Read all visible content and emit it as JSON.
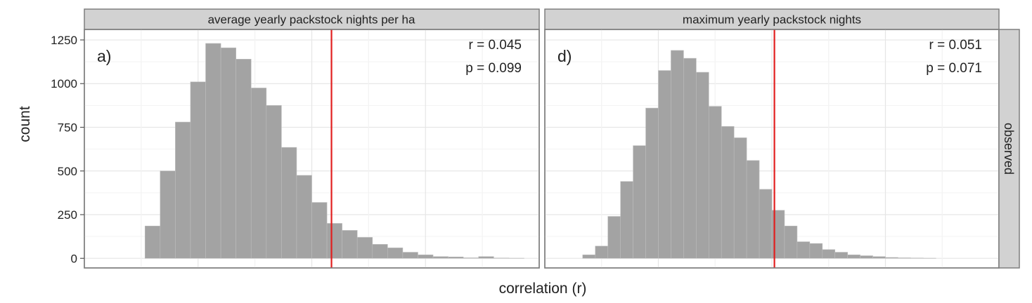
{
  "figure": {
    "ylabel": "count",
    "xlabel": "correlation (r)",
    "row_strip": "observed"
  },
  "colors": {
    "bar_fill": "#a3a3a3",
    "vline": "#e11f1f",
    "strip_bg": "#d2d2d2",
    "grid_major": "#e6e6e6",
    "grid_minor": "#f3f3f3"
  },
  "chart_data": [
    {
      "type": "bar",
      "title": "average yearly packstock nights per ha",
      "panel_label": "a)",
      "r_text": "r = 0.045",
      "p_text": "p = 0.099",
      "ylabel": "count",
      "xlabel": "correlation (r)",
      "ylim": [
        -55,
        1310
      ],
      "yticks": [
        0,
        250,
        500,
        750,
        1000,
        1250
      ],
      "bins": [
        "b1",
        "b2",
        "b3",
        "b4",
        "b5",
        "b6",
        "b7",
        "b8",
        "b9",
        "b10",
        "b11",
        "b12",
        "b13",
        "b14",
        "b15",
        "b16",
        "b17",
        "b18",
        "b19",
        "b20",
        "b21",
        "b22",
        "b23",
        "b24",
        "b25",
        "b26",
        "b27",
        "b28",
        "b29",
        "b30"
      ],
      "values": [
        0,
        0,
        0,
        0,
        185,
        500,
        780,
        1010,
        1230,
        1205,
        1140,
        975,
        875,
        635,
        475,
        320,
        200,
        160,
        120,
        80,
        60,
        35,
        20,
        10,
        8,
        3,
        10,
        2,
        1,
        0
      ],
      "observed_bin": 16.3
    },
    {
      "type": "bar",
      "title": "maximum yearly packstock nights",
      "panel_label": "d)",
      "r_text": "r = 0.051",
      "p_text": "p = 0.071",
      "ylabel": "count",
      "xlabel": "correlation (r)",
      "ylim": [
        -55,
        1310
      ],
      "yticks": [
        0,
        250,
        500,
        750,
        1000,
        1250
      ],
      "bins": [
        "b1",
        "b2",
        "b3",
        "b4",
        "b5",
        "b6",
        "b7",
        "b8",
        "b9",
        "b10",
        "b11",
        "b12",
        "b13",
        "b14",
        "b15",
        "b16",
        "b17",
        "b18",
        "b19",
        "b20",
        "b21",
        "b22",
        "b23",
        "b24",
        "b25",
        "b26",
        "b27",
        "b28",
        "b29",
        "b30",
        "b31",
        "b32",
        "b33",
        "b34",
        "b35",
        "b36"
      ],
      "values": [
        0,
        0,
        0,
        20,
        70,
        240,
        440,
        645,
        860,
        1075,
        1190,
        1145,
        1065,
        870,
        755,
        690,
        560,
        395,
        275,
        185,
        95,
        85,
        50,
        35,
        20,
        15,
        10,
        5,
        3,
        2,
        1,
        0,
        0,
        0,
        0,
        0
      ],
      "observed_bin": 18.2
    }
  ]
}
